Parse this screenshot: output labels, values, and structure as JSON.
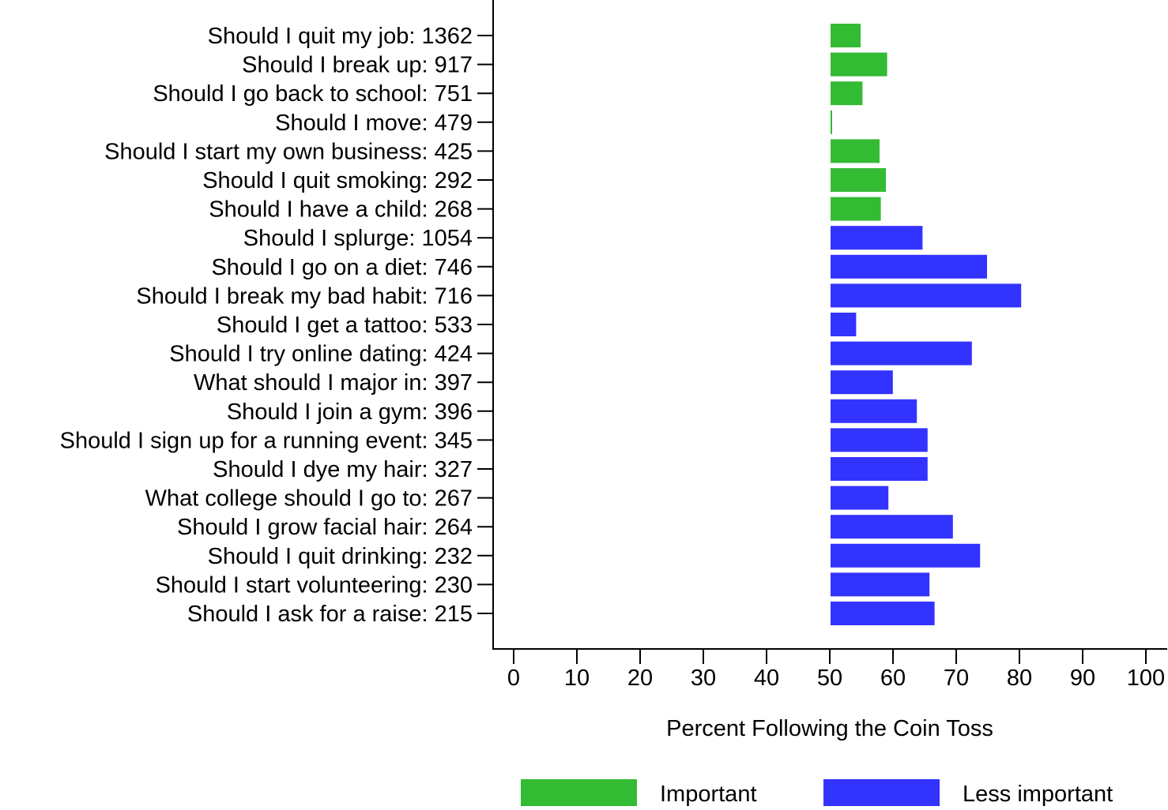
{
  "chart_data": {
    "type": "bar",
    "orientation": "horizontal",
    "xlabel": "Percent Following the Coin Toss",
    "ylabel": "",
    "xlim": [
      0,
      100
    ],
    "xticks": [
      0,
      10,
      20,
      30,
      40,
      50,
      60,
      70,
      80,
      90,
      100
    ],
    "bar_base": 50,
    "grid": false,
    "legend_position": "bottom",
    "legend": [
      {
        "label": "Important",
        "color": "#33bb33"
      },
      {
        "label": "Less important",
        "color": "#3333ff"
      }
    ],
    "categories": [
      {
        "label": "Should I quit my job: 1362",
        "value": 55.0,
        "group": 0
      },
      {
        "label": "Should I break up: 917",
        "value": 59.2,
        "group": 0
      },
      {
        "label": "Should I go back to school: 751",
        "value": 55.3,
        "group": 0
      },
      {
        "label": "Should I move: 479",
        "value": 50.5,
        "group": 0
      },
      {
        "label": "Should I start my own business: 425",
        "value": 58.0,
        "group": 0
      },
      {
        "label": "Should I quit smoking: 292",
        "value": 59.0,
        "group": 0
      },
      {
        "label": "Should I have a child: 268",
        "value": 58.2,
        "group": 0
      },
      {
        "label": "Should I splurge: 1054",
        "value": 64.8,
        "group": 1
      },
      {
        "label": "Should I go on a diet: 746",
        "value": 75.0,
        "group": 1
      },
      {
        "label": "Should I break my bad habit: 716",
        "value": 80.4,
        "group": 1
      },
      {
        "label": "Should I get a tattoo: 533",
        "value": 54.3,
        "group": 1
      },
      {
        "label": "Should I try online dating: 424",
        "value": 72.6,
        "group": 1
      },
      {
        "label": "What should I major in: 397",
        "value": 60.1,
        "group": 1
      },
      {
        "label": "Should I join a gym: 396",
        "value": 63.9,
        "group": 1
      },
      {
        "label": "Should I sign up for a running event: 345",
        "value": 65.6,
        "group": 1
      },
      {
        "label": "Should I dye my hair: 327",
        "value": 65.6,
        "group": 1
      },
      {
        "label": "What college should I go to: 267",
        "value": 59.4,
        "group": 1
      },
      {
        "label": "Should I grow facial hair: 264",
        "value": 69.6,
        "group": 1
      },
      {
        "label": "Should I quit drinking: 232",
        "value": 73.9,
        "group": 1
      },
      {
        "label": "Should I start volunteering: 230",
        "value": 65.9,
        "group": 1
      },
      {
        "label": "Should I ask for a raise: 215",
        "value": 66.7,
        "group": 1
      }
    ]
  }
}
